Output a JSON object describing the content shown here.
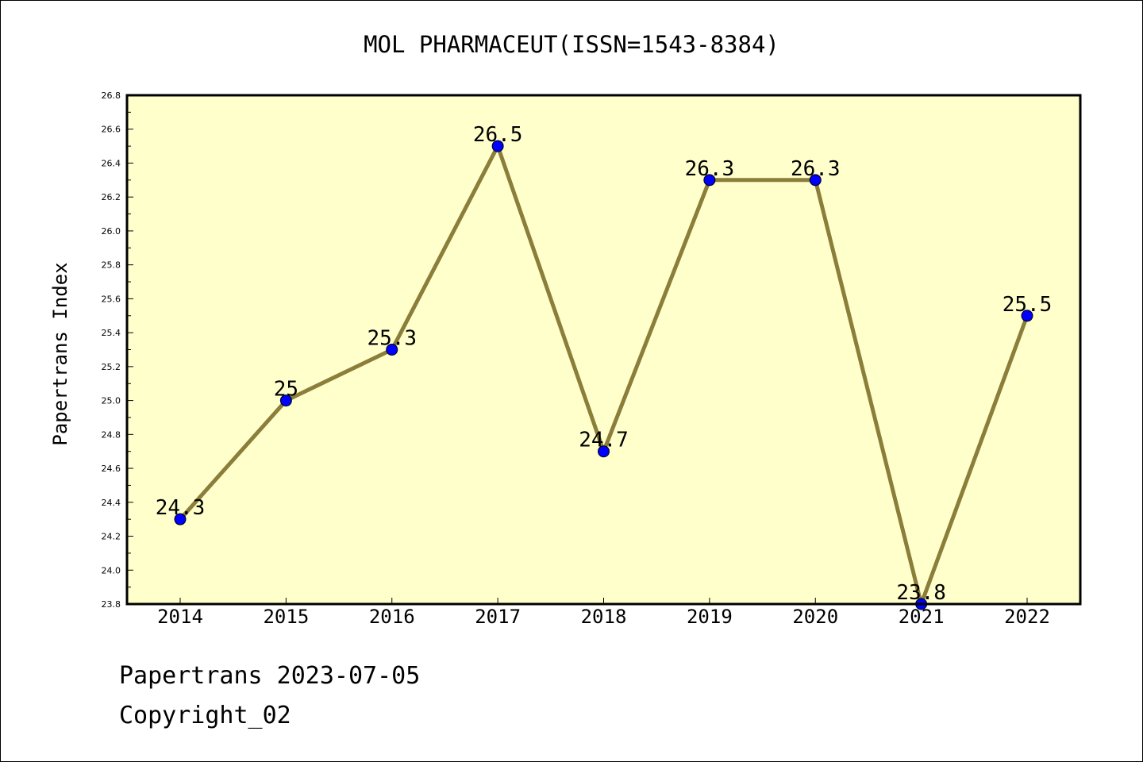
{
  "chart_data": {
    "type": "line",
    "title": "MOL PHARMACEUT(ISSN=1543-8384)",
    "xlabel": "",
    "ylabel": "Papertrans Index",
    "categories": [
      "2014",
      "2015",
      "2016",
      "2017",
      "2018",
      "2019",
      "2020",
      "2021",
      "2022"
    ],
    "values": [
      24.3,
      25.0,
      25.3,
      26.5,
      24.7,
      26.3,
      26.3,
      23.8,
      25.5
    ],
    "data_labels": [
      "24.3",
      "25",
      "25.3",
      "26.5",
      "24.7",
      "26.3",
      "26.3",
      "23.8",
      "25.5"
    ],
    "ylim": [
      23.8,
      26.8
    ],
    "yticks": [
      "23.8",
      "24.0",
      "24.2",
      "24.4",
      "24.6",
      "24.8",
      "25.0",
      "25.2",
      "25.4",
      "25.6",
      "25.8",
      "26.0",
      "26.2",
      "26.4",
      "26.6",
      "26.8"
    ],
    "grid": false,
    "legend": "none",
    "colors": {
      "plot_background": "#ffffcc",
      "line": "#8b7d3a",
      "marker": "#0000ff"
    }
  },
  "footer": {
    "line1": "Papertrans 2023-07-05",
    "line2": "Copyright_02"
  }
}
